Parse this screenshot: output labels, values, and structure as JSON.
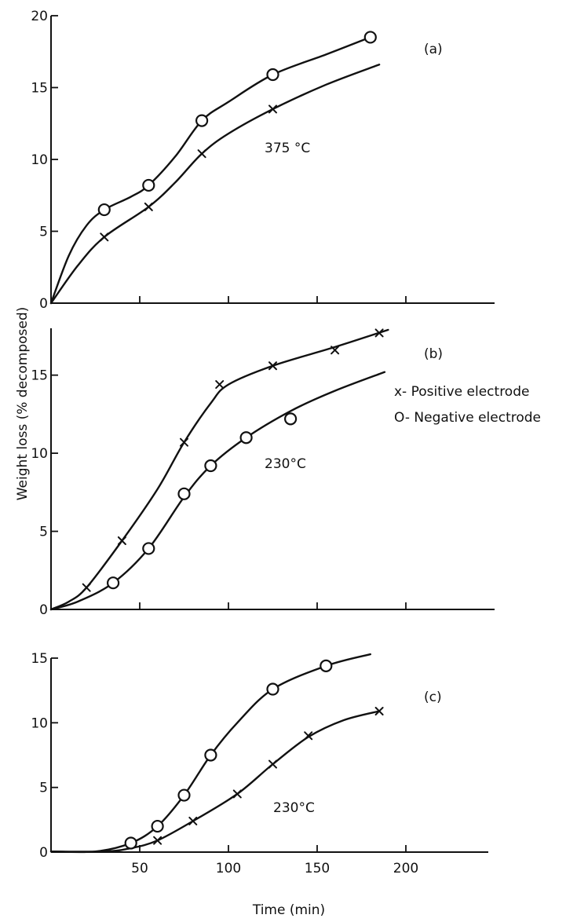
{
  "ylabel": "Weight loss (% decomposed)",
  "xlabel": "Time (min)",
  "legend": {
    "positive": "x- Positive electrode",
    "negative": "O- Negative electrode"
  },
  "chart_data": [
    {
      "type": "line",
      "panel": "(a)",
      "annotation": "375 °C",
      "xlim": [
        0,
        250
      ],
      "ylim": [
        0,
        20
      ],
      "x_ticks": [
        50,
        100,
        150,
        200
      ],
      "x_tick_labels": [
        "",
        "",
        "",
        ""
      ],
      "y_ticks": [
        0,
        5,
        10,
        15,
        20
      ],
      "y_tick_labels": [
        "0",
        "5",
        "10",
        "15",
        "20"
      ],
      "series": [
        {
          "name": "Positive electrode",
          "marker": "x",
          "points": [
            [
              30,
              4.6
            ],
            [
              55,
              6.7
            ],
            [
              85,
              10.4
            ],
            [
              125,
              13.5
            ]
          ],
          "curve": [
            [
              0,
              0
            ],
            [
              15,
              2.6
            ],
            [
              30,
              4.6
            ],
            [
              55,
              6.7
            ],
            [
              70,
              8.4
            ],
            [
              85,
              10.4
            ],
            [
              100,
              11.8
            ],
            [
              125,
              13.5
            ],
            [
              155,
              15.2
            ],
            [
              185,
              16.6
            ]
          ]
        },
        {
          "name": "Negative electrode",
          "marker": "o",
          "points": [
            [
              30,
              6.5
            ],
            [
              55,
              8.2
            ],
            [
              85,
              12.7
            ],
            [
              125,
              15.9
            ],
            [
              180,
              18.5
            ]
          ],
          "curve": [
            [
              0,
              0
            ],
            [
              10,
              3.3
            ],
            [
              20,
              5.4
            ],
            [
              30,
              6.5
            ],
            [
              45,
              7.4
            ],
            [
              55,
              8.2
            ],
            [
              70,
              10.2
            ],
            [
              85,
              12.7
            ],
            [
              100,
              14.0
            ],
            [
              125,
              15.9
            ],
            [
              155,
              17.3
            ],
            [
              180,
              18.5
            ]
          ]
        }
      ]
    },
    {
      "type": "line",
      "panel": "(b)",
      "annotation": "230°C",
      "xlim": [
        0,
        250
      ],
      "ylim": [
        0,
        18
      ],
      "x_ticks": [
        50,
        100,
        150,
        200
      ],
      "x_tick_labels": [
        "",
        "",
        "",
        ""
      ],
      "y_ticks": [
        0,
        5,
        10,
        15
      ],
      "y_tick_labels": [
        "0",
        "5",
        "10",
        "15"
      ],
      "series": [
        {
          "name": "Positive electrode",
          "marker": "x",
          "points": [
            [
              20,
              1.4
            ],
            [
              40,
              4.4
            ],
            [
              75,
              10.7
            ],
            [
              95,
              14.4
            ],
            [
              125,
              15.6
            ],
            [
              160,
              16.6
            ],
            [
              185,
              17.7
            ]
          ],
          "curve": [
            [
              0,
              0
            ],
            [
              10,
              0.5
            ],
            [
              20,
              1.4
            ],
            [
              40,
              4.4
            ],
            [
              60,
              7.7
            ],
            [
              75,
              10.7
            ],
            [
              90,
              13.2
            ],
            [
              100,
              14.4
            ],
            [
              125,
              15.6
            ],
            [
              160,
              16.8
            ],
            [
              190,
              17.9
            ]
          ]
        },
        {
          "name": "Negative electrode",
          "marker": "o",
          "points": [
            [
              35,
              1.7
            ],
            [
              55,
              3.9
            ],
            [
              75,
              7.4
            ],
            [
              90,
              9.2
            ],
            [
              110,
              11.0
            ],
            [
              135,
              12.2
            ]
          ],
          "curve": [
            [
              0,
              0
            ],
            [
              15,
              0.5
            ],
            [
              35,
              1.7
            ],
            [
              55,
              3.9
            ],
            [
              75,
              7.2
            ],
            [
              90,
              9.2
            ],
            [
              110,
              11.0
            ],
            [
              135,
              12.7
            ],
            [
              160,
              14.0
            ],
            [
              188,
              15.2
            ]
          ]
        }
      ]
    },
    {
      "type": "line",
      "panel": "(c)",
      "annotation": "230°C",
      "xlim": [
        0,
        250
      ],
      "ylim": [
        0,
        15
      ],
      "x_ticks": [
        50,
        100,
        150,
        200
      ],
      "x_tick_labels": [
        "50",
        "100",
        "150",
        "200"
      ],
      "y_ticks": [
        0,
        5,
        10,
        15
      ],
      "y_tick_labels": [
        "0",
        "5",
        "10",
        "15"
      ],
      "series": [
        {
          "name": "Positive electrode",
          "marker": "x",
          "points": [
            [
              60,
              0.9
            ],
            [
              80,
              2.4
            ],
            [
              105,
              4.5
            ],
            [
              125,
              6.8
            ],
            [
              145,
              9.0
            ],
            [
              185,
              10.9
            ]
          ],
          "curve": [
            [
              0,
              0.05
            ],
            [
              30,
              0.05
            ],
            [
              45,
              0.3
            ],
            [
              60,
              0.9
            ],
            [
              80,
              2.4
            ],
            [
              105,
              4.5
            ],
            [
              125,
              6.8
            ],
            [
              145,
              8.9
            ],
            [
              165,
              10.2
            ],
            [
              185,
              10.9
            ]
          ]
        },
        {
          "name": "Negative electrode",
          "marker": "o",
          "points": [
            [
              45,
              0.7
            ],
            [
              60,
              2.0
            ],
            [
              75,
              4.4
            ],
            [
              90,
              7.5
            ],
            [
              125,
              12.6
            ],
            [
              155,
              14.4
            ]
          ],
          "curve": [
            [
              0,
              0.05
            ],
            [
              25,
              0.05
            ],
            [
              45,
              0.7
            ],
            [
              60,
              2.0
            ],
            [
              75,
              4.4
            ],
            [
              90,
              7.5
            ],
            [
              105,
              10.0
            ],
            [
              125,
              12.6
            ],
            [
              155,
              14.4
            ],
            [
              180,
              15.3
            ]
          ]
        }
      ]
    }
  ]
}
